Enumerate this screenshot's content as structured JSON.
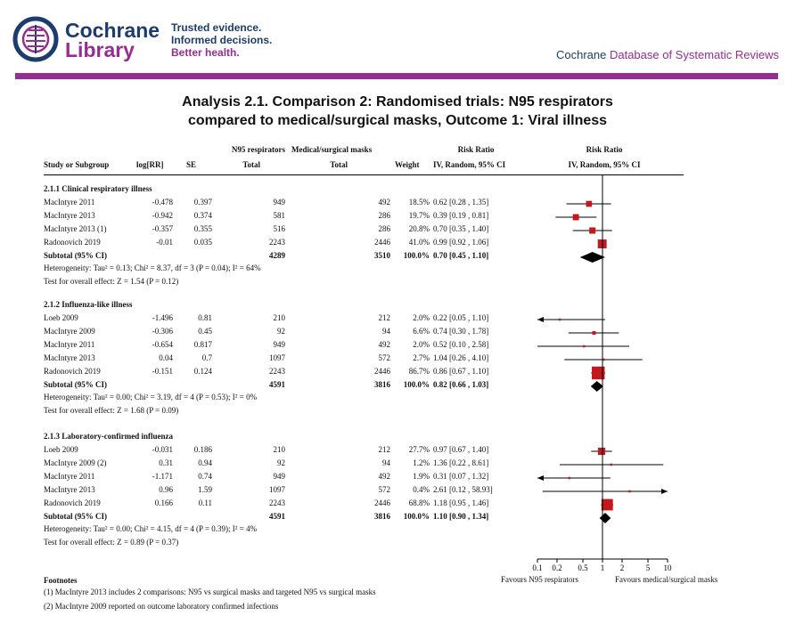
{
  "header": {
    "logo_line1": "Cochrane",
    "logo_line2": "Library",
    "tagline": [
      "Trusted evidence.",
      "Informed decisions.",
      "Better health."
    ],
    "db_prefix": "Cochrane",
    "db_name": "Database of Systematic Reviews",
    "colors": {
      "brand_blue": "#1d3c6e",
      "brand_purple": "#962d91",
      "bar": "#962d91"
    }
  },
  "analysis": {
    "title_line1": "Analysis 2.1.   Comparison 2: Randomised trials: N95 respirators",
    "title_line2": "compared to medical/surgical masks, Outcome 1: Viral illness"
  },
  "columns": {
    "study": "Study or Subgroup",
    "logrr": "log[RR]",
    "se": "SE",
    "n95_top": "N95 respirators",
    "n95_total": "Total",
    "msm_top": "Medical/surgical masks",
    "msm_total": "Total",
    "weight": "Weight",
    "rr_top": "Risk Ratio",
    "rr_sub": "IV, Random, 95% CI",
    "rr_plot_top": "Risk Ratio",
    "rr_plot_sub": "IV, Random, 95% CI"
  },
  "chart_data": {
    "type": "forest",
    "x_scale": "log",
    "xlim": [
      0.1,
      10
    ],
    "ticks": [
      "0.1",
      "0.2",
      "0.5",
      "1",
      "2",
      "5",
      "10"
    ],
    "favours_left": "Favours N95 respirators",
    "favours_right": "Favours medical/surgical masks",
    "subgroups": [
      {
        "label": "2.1.1 Clinical respiratory illness",
        "studies": [
          {
            "study": "MacIntyre 2011",
            "logrr": "-0.478",
            "se": "0.397",
            "n95": "949",
            "msm": "492",
            "weight": "18.5%",
            "ci": "0.62 [0.28 , 1.35]",
            "rr": 0.62,
            "lo": 0.28,
            "hi": 1.35,
            "w": 18.5
          },
          {
            "study": "MacIntyre 2013",
            "logrr": "-0.942",
            "se": "0.374",
            "n95": "581",
            "msm": "286",
            "weight": "19.7%",
            "ci": "0.39 [0.19 , 0.81]",
            "rr": 0.39,
            "lo": 0.19,
            "hi": 0.81,
            "w": 19.7
          },
          {
            "study": "MacIntyre 2013 (1)",
            "logrr": "-0.357",
            "se": "0.355",
            "n95": "516",
            "msm": "286",
            "weight": "20.8%",
            "ci": "0.70 [0.35 , 1.40]",
            "rr": 0.7,
            "lo": 0.35,
            "hi": 1.4,
            "w": 20.8
          },
          {
            "study": "Radonovich 2019",
            "logrr": "-0.01",
            "se": "0.035",
            "n95": "2243",
            "msm": "2446",
            "weight": "41.0%",
            "ci": "0.99 [0.92 , 1.06]",
            "rr": 0.99,
            "lo": 0.92,
            "hi": 1.06,
            "w": 41.0
          }
        ],
        "subtotal": {
          "label": "Subtotal (95% CI)",
          "n95": "4289",
          "msm": "3510",
          "weight": "100.0%",
          "ci": "0.70 [0.45 , 1.10]",
          "rr": 0.7,
          "lo": 0.45,
          "hi": 1.1
        },
        "heterogeneity": "Heterogeneity: Tau² = 0.13; Chi² = 8.37, df = 3 (P = 0.04); I² = 64%",
        "overall_test": "Test for overall effect: Z = 1.54 (P = 0.12)"
      },
      {
        "label": "2.1.2 Influenza-like illness",
        "studies": [
          {
            "study": "Loeb 2009",
            "logrr": "-1.496",
            "se": "0.81",
            "n95": "210",
            "msm": "212",
            "weight": "2.0%",
            "ci": "0.22 [0.05 , 1.10]",
            "rr": 0.22,
            "lo": 0.05,
            "hi": 1.1,
            "w": 2.0
          },
          {
            "study": "MacIntyre 2009",
            "logrr": "-0.306",
            "se": "0.45",
            "n95": "92",
            "msm": "94",
            "weight": "6.6%",
            "ci": "0.74 [0.30 , 1.78]",
            "rr": 0.74,
            "lo": 0.3,
            "hi": 1.78,
            "w": 6.6
          },
          {
            "study": "MacIntyre 2011",
            "logrr": "-0.654",
            "se": "0.817",
            "n95": "949",
            "msm": "492",
            "weight": "2.0%",
            "ci": "0.52 [0.10 , 2.58]",
            "rr": 0.52,
            "lo": 0.1,
            "hi": 2.58,
            "w": 2.0
          },
          {
            "study": "MacIntyre 2013",
            "logrr": "0.04",
            "se": "0.7",
            "n95": "1097",
            "msm": "572",
            "weight": "2.7%",
            "ci": "1.04 [0.26 , 4.10]",
            "rr": 1.04,
            "lo": 0.26,
            "hi": 4.1,
            "w": 2.7
          },
          {
            "study": "Radonovich 2019",
            "logrr": "-0.151",
            "se": "0.124",
            "n95": "2243",
            "msm": "2446",
            "weight": "86.7%",
            "ci": "0.86 [0.67 , 1.10]",
            "rr": 0.86,
            "lo": 0.67,
            "hi": 1.1,
            "w": 86.7
          }
        ],
        "subtotal": {
          "label": "Subtotal (95% CI)",
          "n95": "4591",
          "msm": "3816",
          "weight": "100.0%",
          "ci": "0.82 [0.66 , 1.03]",
          "rr": 0.82,
          "lo": 0.66,
          "hi": 1.03
        },
        "heterogeneity": "Heterogeneity: Tau² = 0.00; Chi² = 3.19, df = 4 (P = 0.53); I² = 0%",
        "overall_test": "Test for overall effect: Z = 1.68 (P = 0.09)"
      },
      {
        "label": "2.1.3 Laboratory-confirmed influenza",
        "studies": [
          {
            "study": "Loeb 2009",
            "logrr": "-0.031",
            "se": "0.186",
            "n95": "210",
            "msm": "212",
            "weight": "27.7%",
            "ci": "0.97 [0.67 , 1.40]",
            "rr": 0.97,
            "lo": 0.67,
            "hi": 1.4,
            "w": 27.7
          },
          {
            "study": "MacIntyre 2009 (2)",
            "logrr": "0.31",
            "se": "0.94",
            "n95": "92",
            "msm": "94",
            "weight": "1.2%",
            "ci": "1.36 [0.22 , 8.61]",
            "rr": 1.36,
            "lo": 0.22,
            "hi": 8.61,
            "w": 1.2
          },
          {
            "study": "MacIntyre 2011",
            "logrr": "-1.171",
            "se": "0.74",
            "n95": "949",
            "msm": "492",
            "weight": "1.9%",
            "ci": "0.31 [0.07 , 1.32]",
            "rr": 0.31,
            "lo": 0.07,
            "hi": 1.32,
            "w": 1.9
          },
          {
            "study": "MacIntyre 2013",
            "logrr": "0.96",
            "se": "1.59",
            "n95": "1097",
            "msm": "572",
            "weight": "0.4%",
            "ci": "2.61 [0.12 , 58.93]",
            "rr": 2.61,
            "lo": 0.12,
            "hi": 58.93,
            "w": 0.4
          },
          {
            "study": "Radonovich 2019",
            "logrr": "0.166",
            "se": "0.11",
            "n95": "2243",
            "msm": "2446",
            "weight": "68.8%",
            "ci": "1.18 [0.95 , 1.46]",
            "rr": 1.18,
            "lo": 0.95,
            "hi": 1.46,
            "w": 68.8
          }
        ],
        "subtotal": {
          "label": "Subtotal (95% CI)",
          "n95": "4591",
          "msm": "3816",
          "weight": "100.0%",
          "ci": "1.10 [0.90 , 1.34]",
          "rr": 1.1,
          "lo": 0.9,
          "hi": 1.34
        },
        "heterogeneity": "Heterogeneity: Tau² = 0.00; Chi² = 4.15, df = 4 (P = 0.39); I² = 4%",
        "overall_test": "Test for overall effect: Z = 0.89 (P = 0.37)"
      }
    ],
    "colors": {
      "square": "#c0191f",
      "diamond": "#000000",
      "line": "#000000"
    }
  },
  "footnotes": {
    "heading": "Footnotes",
    "items": [
      "(1) MacIntyre 2013 includes 2 comparisons: N95 vs surgical masks and targeted N95 vs surgical masks",
      "(2) MacIntyre 2009 reported on outcome laboratory confirmed infections"
    ]
  }
}
